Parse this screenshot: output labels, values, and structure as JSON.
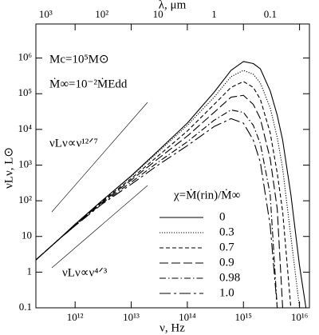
{
  "chart_data": {
    "type": "line",
    "x_label": "ν, Hz",
    "x2_label": "λ, μm",
    "y_label": "νLν, L⊙",
    "annotations": [
      "Mc=10⁵M⊙",
      "Ṁ∞=10⁻²ṀEdd",
      "νLν∝ν¹²ᐟ⁷",
      "νLν∝ν⁴ᐟ³"
    ],
    "legend_title": "χ=Ṁ(rin)/Ṁ∞",
    "legend": "lower right",
    "log_x": true,
    "log_y": true,
    "x": [
      200000000000.0,
      500000000000.0,
      1000000000000.0,
      3000000000000.0,
      10000000000000.0,
      30000000000000.0,
      100000000000000.0,
      300000000000000.0,
      600000000000000.0,
      1000000000000000.0,
      1500000000000000.0,
      2000000000000000.0,
      3000000000000000.0,
      4000000000000000.0,
      5000000000000000.0,
      7000000000000000.0,
      1e+16,
      1.3e+16
    ],
    "series": [
      {
        "name": "0",
        "color": "#000000",
        "dash": "none",
        "values": [
          2.2,
          8,
          22,
          100,
          500,
          2500,
          15000,
          110000,
          450000,
          800000,
          700000,
          500000,
          120000,
          25000,
          5000,
          150,
          1.5,
          0.1
        ]
      },
      {
        "name": "0.3",
        "color": "#000000",
        "dash": "1.2,1.8",
        "values": [
          2.2,
          8,
          22,
          100,
          480,
          2300,
          13000,
          80000,
          300000,
          450000,
          350000,
          200000,
          40000,
          6000,
          800,
          10,
          0.1,
          null
        ]
      },
      {
        "name": "0.7",
        "color": "#000000",
        "dash": "5,3",
        "values": [
          2.2,
          8,
          21,
          95,
          420,
          1800,
          9000,
          50000,
          150000,
          220000,
          150000,
          70000,
          8000,
          600,
          50,
          0.1,
          null,
          null
        ]
      },
      {
        "name": "0.9",
        "color": "#000000",
        "dash": "11,4",
        "values": [
          2.2,
          8,
          21,
          90,
          380,
          1500,
          6500,
          30000,
          80000,
          90000,
          50000,
          20000,
          1500,
          60,
          0.1,
          null,
          null,
          null
        ]
      },
      {
        "name": "0.98",
        "color": "#000000",
        "dash": "8,3,1.5,3",
        "values": [
          2.2,
          8,
          20,
          85,
          330,
          1200,
          4500,
          18000,
          35000,
          30000,
          13000,
          4000,
          150,
          0.1,
          null,
          null,
          null,
          null
        ]
      },
      {
        "name": "1.0",
        "color": "#000000",
        "dash": "14,4,3,4",
        "values": [
          2.2,
          8,
          20,
          80,
          290,
          1000,
          3500,
          12000,
          20000,
          15000,
          5000,
          1200,
          20,
          0.1,
          null,
          null,
          null,
          null
        ]
      }
    ],
    "xlim": [
      200000000000.0,
      1.5e+16
    ],
    "xticks": [
      {
        "value": 1000000000000.0,
        "label": "10¹²"
      },
      {
        "value": 10000000000000.0,
        "label": "10¹³"
      },
      {
        "value": 100000000000000.0,
        "label": "10¹⁴"
      },
      {
        "value": 1000000000000000.0,
        "label": "10¹⁵"
      },
      {
        "value": 1e+16,
        "label": "10¹⁶"
      }
    ],
    "x2lim": [
      1500,
      0.02
    ],
    "x2ticks": [
      {
        "value": 1000,
        "label": "10³"
      },
      {
        "value": 100,
        "label": "10²"
      },
      10,
      1,
      0.1
    ],
    "ylim": [
      0.1,
      9000000.0
    ],
    "yticks": [
      0.1,
      1,
      10,
      {
        "value": 100,
        "label": "10²"
      },
      {
        "value": 1000,
        "label": "10³"
      },
      {
        "value": 10000,
        "label": "10⁴"
      },
      {
        "value": 100000,
        "label": "10⁵"
      },
      {
        "value": 1000000,
        "label": "10⁶"
      }
    ]
  }
}
